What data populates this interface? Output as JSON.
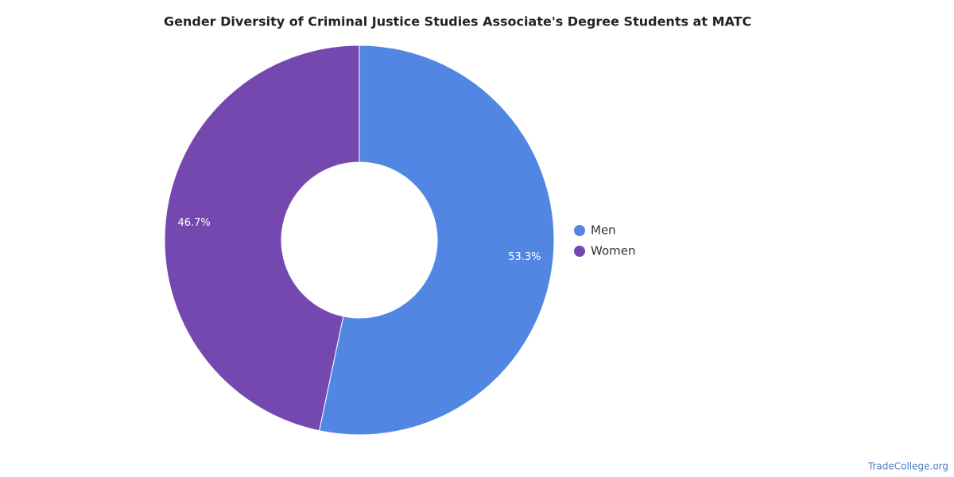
{
  "chart_data": {
    "type": "donut",
    "title": "Gender Diversity of Criminal Justice Studies Associate's Degree Students at MATC",
    "series": [
      {
        "name": "Men",
        "color": "#5187e3",
        "values": [
          53.3
        ],
        "value_labels": [
          "53.3%"
        ]
      },
      {
        "name": "Women",
        "color": "#7548b0",
        "values": [
          46.7
        ],
        "value_labels": [
          "46.7%"
        ]
      }
    ],
    "legend": "right",
    "credit": "TradeCollege.org"
  }
}
